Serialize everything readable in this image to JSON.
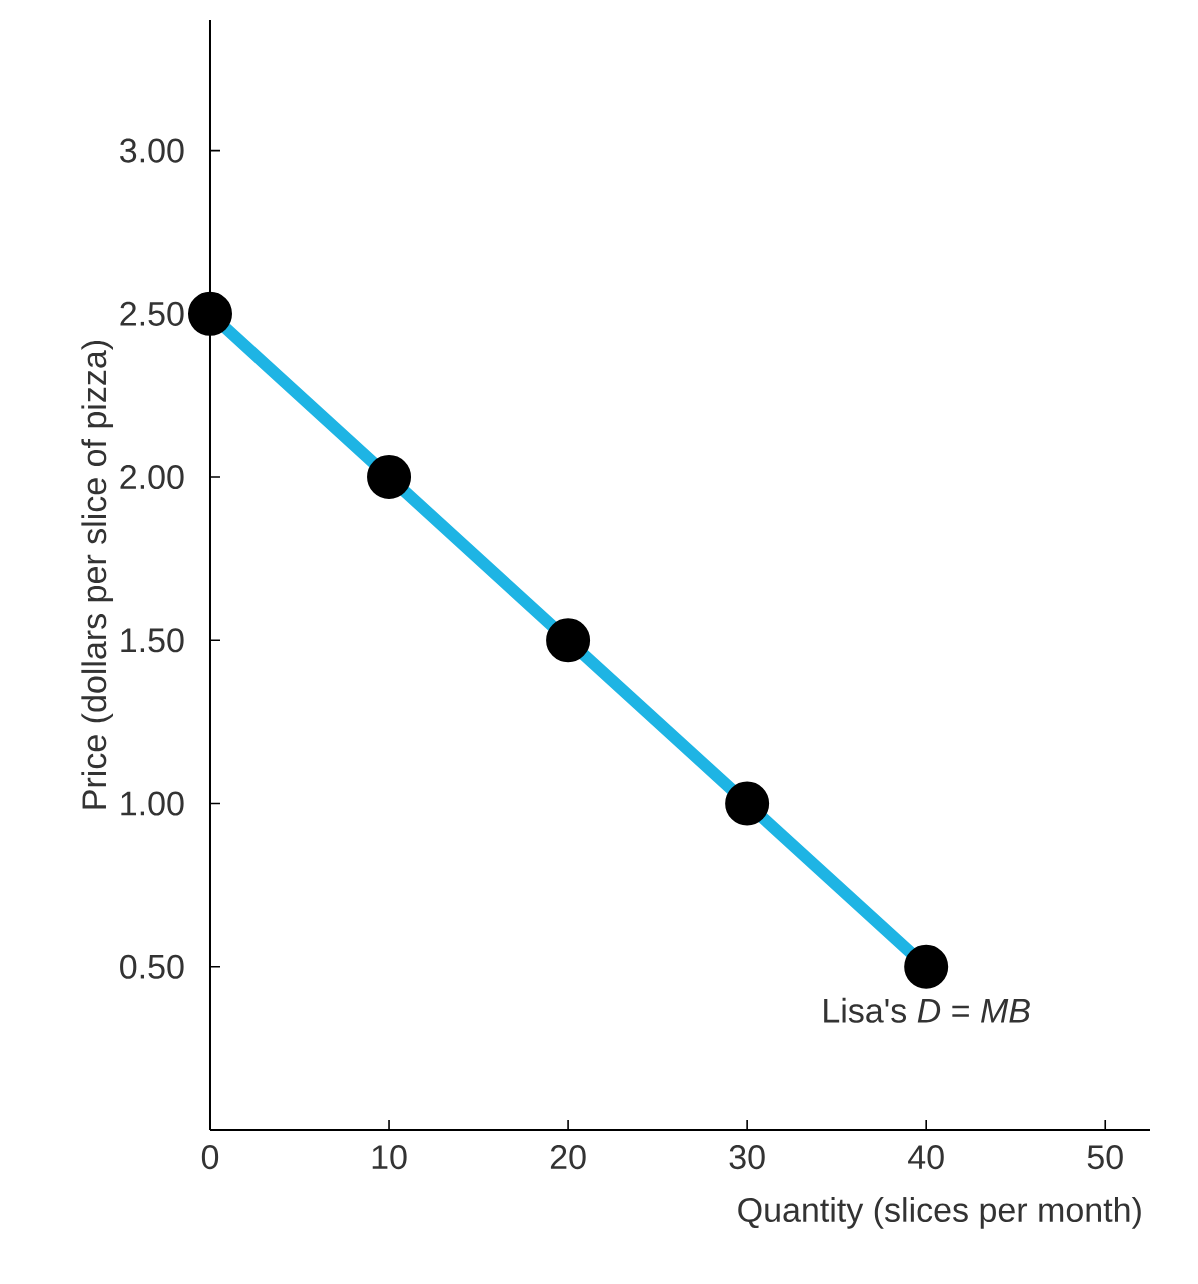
{
  "chart_data": {
    "type": "line",
    "xlabel": "Quantity (slices per month)",
    "ylabel": "Price (dollars per slice of pizza)",
    "x": [
      0,
      10,
      20,
      30,
      40
    ],
    "series": [
      {
        "color": "#1eb4e4",
        "values": [
          2.5,
          2.0,
          1.5,
          1.0,
          0.5
        ]
      }
    ],
    "marker": "circle",
    "line_style": "solid",
    "xlim": [
      0,
      52.5
    ],
    "ylim": [
      0,
      3.4
    ],
    "xticks": [
      0,
      10,
      20,
      30,
      40,
      50
    ],
    "yticks": [
      {
        "value": 0.5,
        "label": "0.50"
      },
      {
        "value": 1.0,
        "label": "1.00"
      },
      {
        "value": 1.5,
        "label": "1.50"
      },
      {
        "value": 2.0,
        "label": "2.00"
      },
      {
        "value": 2.5,
        "label": "2.50"
      },
      {
        "value": 3.0,
        "label": "3.00"
      }
    ],
    "annotations": [
      {
        "text": "Lisa's *D* = *MB*",
        "x": 40,
        "y": 0.5
      }
    ]
  }
}
